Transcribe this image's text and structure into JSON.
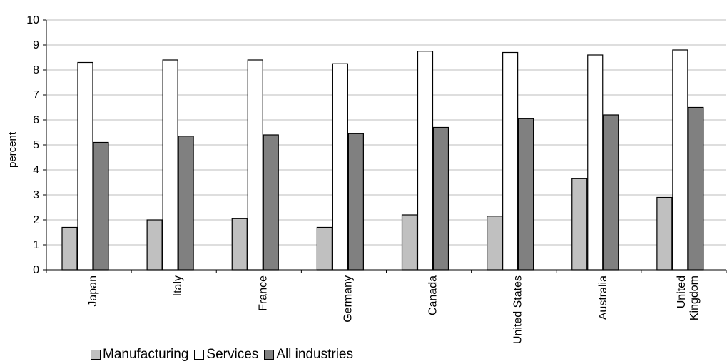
{
  "chart_data": {
    "type": "bar",
    "categories": [
      "Japan",
      "Italy",
      "France",
      "Germany",
      "Canada",
      "United States",
      "Australia",
      "United\nKingdom"
    ],
    "series": [
      {
        "name": "Manufacturing",
        "color": "#c0c0c0",
        "values": [
          1.7,
          2.0,
          2.05,
          1.7,
          2.2,
          2.15,
          3.65,
          2.9
        ]
      },
      {
        "name": "Services",
        "color": "#ffffff",
        "values": [
          8.3,
          8.4,
          8.4,
          8.25,
          8.75,
          8.7,
          8.6,
          8.8
        ]
      },
      {
        "name": "All industries",
        "color": "#808080",
        "values": [
          5.1,
          5.35,
          5.4,
          5.45,
          5.7,
          6.05,
          6.2,
          6.5
        ]
      }
    ],
    "title": "",
    "xlabel": "",
    "ylabel": "percent",
    "ylim": [
      0,
      10
    ],
    "yticks": [
      "0",
      "1",
      "2",
      "3",
      "4",
      "5",
      "6",
      "7",
      "8",
      "9",
      "10"
    ],
    "grid": true,
    "legend_position": "bottom-left"
  }
}
